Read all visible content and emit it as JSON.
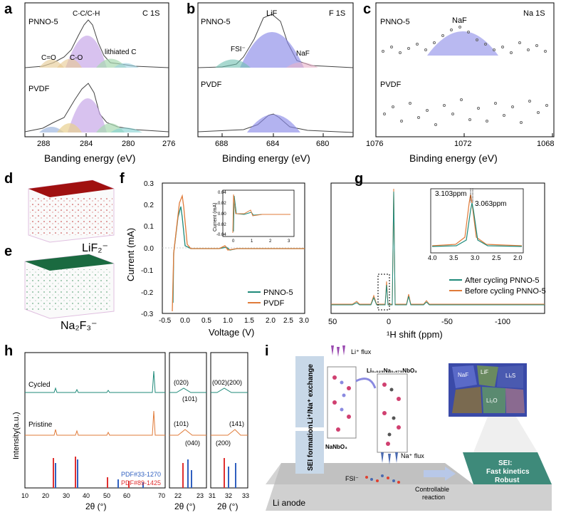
{
  "panels": {
    "a": {
      "letter": "a",
      "top_label": "PNNO-5",
      "element": "C 1S",
      "bottom_label": "PVDF",
      "peaks": [
        "C-C/C-H",
        "C=O",
        "C-O",
        "lithiated C"
      ],
      "xlabel": "Banding energy (eV)",
      "ticks": [
        "288",
        "284",
        "280",
        "276"
      ]
    },
    "b": {
      "letter": "b",
      "top_label": "PNNO-5",
      "element": "F 1S",
      "bottom_label": "PVDF",
      "peaks": [
        "LiF",
        "FSI⁻",
        "NaF"
      ],
      "xlabel": "Binding energy (eV)",
      "ticks": [
        "688",
        "684",
        "680"
      ]
    },
    "c": {
      "letter": "c",
      "top_label": "PNNO-5",
      "element": "Na 1S",
      "bottom_label": "PVDF",
      "peaks": [
        "NaF"
      ],
      "xlabel": "Binding energy (eV)",
      "ticks": [
        "1076",
        "1072",
        "1068"
      ]
    },
    "d": {
      "letter": "d",
      "label": "LiF₂⁻"
    },
    "e": {
      "letter": "e",
      "label": "Na₂F₃⁻"
    },
    "f": {
      "letter": "f",
      "ylabel": "Current (mA)",
      "xlabel": "Voltage (V)",
      "yticks": [
        "0.3",
        "0.2",
        "0.1",
        "0.0",
        "-0.1",
        "-0.2",
        "-0.3"
      ],
      "xticks": [
        "-0.5",
        "0.0",
        "0.5",
        "1.0",
        "1.5",
        "2.0",
        "2.5",
        "3.0"
      ],
      "legend": [
        "PNNO-5",
        "PVDF"
      ],
      "inset": {
        "ylabel": "Current (mA)",
        "yticks": [
          "0.04",
          "0.02",
          "0.00",
          "-0.02",
          "-0.04"
        ],
        "xticks": [
          "0",
          "1",
          "2",
          "3"
        ]
      }
    },
    "g": {
      "letter": "g",
      "xlabel": "¹H shift (ppm)",
      "xticks": [
        "50",
        "0",
        "-50",
        "-100"
      ],
      "legend": [
        "After cycling PNNO-5",
        "Before cycling PNNO-5"
      ],
      "inset": {
        "xticks": [
          "4.0",
          "3.5",
          "3.0",
          "2.5",
          "2.0"
        ],
        "ann1": "3.103ppm",
        "ann2": "3.063ppm"
      }
    },
    "h": {
      "letter": "h",
      "ylabel": "Intensity(a.u.)",
      "xlabel": "2θ (°)",
      "cycled": "Cycled",
      "pristine": "Pristine",
      "pdf1": "PDF#33-1270",
      "pdf2": "PDF#89-1425",
      "ticks1": [
        "10",
        "20",
        "30",
        "40",
        "50",
        "60",
        "70"
      ],
      "ticks2": [
        "22",
        "23"
      ],
      "ticks3": [
        "31",
        "32",
        "33"
      ],
      "peaks2": [
        "(020)",
        "(101)",
        "(101)",
        "(040)"
      ],
      "peaks3": [
        "(002)(200)",
        "(141)",
        "(200)"
      ]
    },
    "i": {
      "letter": "i",
      "exchange": "Li⁺/Na⁺ exchange",
      "sei_formation": "SEI formation",
      "li_flux": "Li⁺ flux",
      "na_flux": "Na⁺ flux",
      "nanbo3": "NaNbO₃",
      "linanbo3": "Li₀.₀₂₅Na₀.₉₇₅NbO₃",
      "fsi": "FSI⁻",
      "controllable1": "Controllable",
      "controllable2": "reaction",
      "li_anode": "Li anode",
      "sei1": "SEI:",
      "sei2": "Fast kinetics",
      "sei3": "Robust",
      "grains": [
        "NaF",
        "LiF",
        "Li₂O",
        "LiₓS"
      ]
    }
  },
  "colors": {
    "teal": "#1f8a7a",
    "orange": "#e07b39",
    "purple": "#b48be0",
    "blue_fill": "#8a8ae8"
  }
}
